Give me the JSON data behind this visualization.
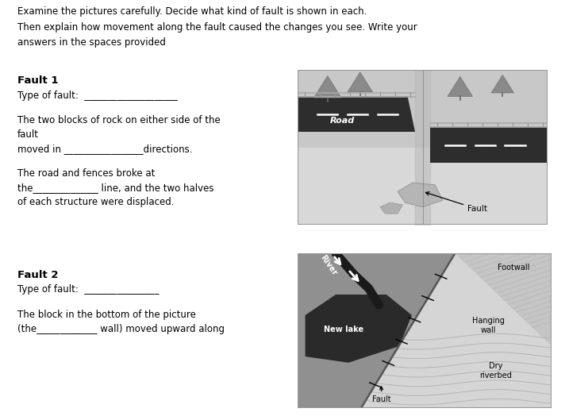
{
  "bg_color": "#ffffff",
  "line1": "Examine the pictures carefully. Decide what kind of fault is shown in each.",
  "line2": "Then explain how movement along the fault caused the changes you see. Write your",
  "line3": "answers in the spaces provided",
  "fault1_head": "Fault 1",
  "fault1_l1": "Type of fault:  ____________________",
  "fault1_l2": "The two blocks of rock on either side of the",
  "fault1_l3": "fault",
  "fault1_l4": "moved in _________________directions.",
  "fault1_l5": "The road and fences broke at",
  "fault1_l6": "the______________ line, and the two halves",
  "fault1_l7": "of each structure were displaced.",
  "fault2_head": "Fault 2",
  "fault2_l1": "Type of fault:  ________________",
  "fault2_l2": "The block in the bottom of the picture",
  "fault2_l3": "(the_____________ wall) moved upward along",
  "text_color": "#000000",
  "img1_road_color": "#2d2d2d",
  "img1_ground_color": "#d4d4d4",
  "img1_ground2_color": "#c0c0c0",
  "img1_road_label_color": "#ffffff",
  "img2_lake_color": "#4a4a4a",
  "img2_bg_dark": "#888888",
  "img2_bg_light": "#c8c8c8",
  "img2_hw_color": "#d8d8d8",
  "img2_fault_color": "#aaaaaa"
}
